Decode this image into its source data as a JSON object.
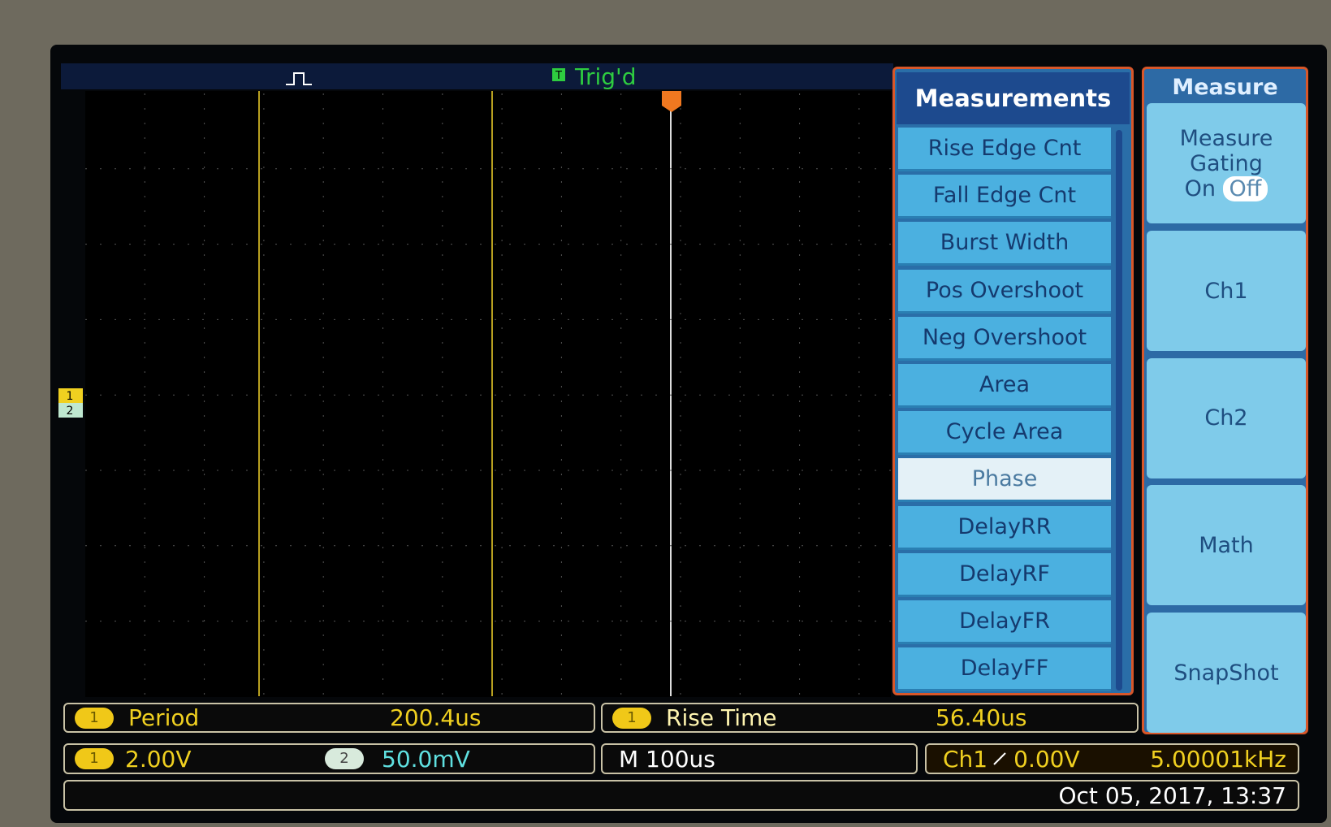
{
  "top_bar": {
    "trigger_badge": "T",
    "status": "Trig'd"
  },
  "channel_markers": [
    "1",
    "2"
  ],
  "measurements_menu": {
    "title": "Measurements",
    "items": [
      "Rise Edge Cnt",
      "Fall Edge Cnt",
      "Burst Width",
      "Pos Overshoot",
      "Neg Overshoot",
      "Area",
      "Cycle Area",
      "Phase",
      "DelayRR",
      "DelayRF",
      "DelayFR",
      "DelayFF"
    ]
  },
  "measure_menu": {
    "title": "Measure",
    "gating": {
      "label": "Measure Gating",
      "on": "On",
      "off": "Off"
    },
    "buttons": [
      "Ch1",
      "Ch2",
      "Math",
      "SnapShot"
    ]
  },
  "readouts": {
    "period": {
      "channel": "1",
      "label": "Period",
      "value": "200.4us"
    },
    "rise_time": {
      "channel": "1",
      "label": "Rise Time",
      "value": "56.40us"
    }
  },
  "status_bar": {
    "ch1_scale": {
      "channel": "1",
      "value": "2.00V"
    },
    "ch2_scale": {
      "channel": "2",
      "value": "50.0mV"
    },
    "timebase": "M 100us",
    "trigger": {
      "source": "Ch1",
      "level": "0.00V",
      "frequency": "5.00001kHz"
    },
    "datetime": "Oct 05, 2017, 13:37"
  }
}
